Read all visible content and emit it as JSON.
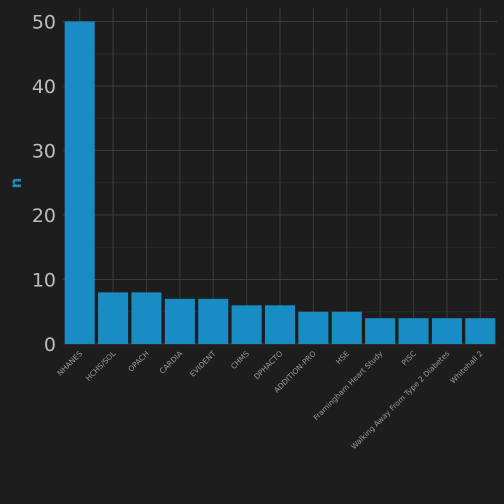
{
  "chart_data": {
    "type": "bar",
    "title": "",
    "xlabel": "",
    "ylabel": "n",
    "ylim": [
      0,
      50
    ],
    "yticks": [
      0,
      10,
      20,
      30,
      40,
      50
    ],
    "grid": true,
    "bar_color": "#1a8cc4",
    "background": "#1d1d1d",
    "grid_major_color": "#3c3c3c",
    "grid_minor_color": "#2a2a2a",
    "categories": [
      "NHANES",
      "HCHS/SOL",
      "OPACH",
      "CARDIA",
      "EVIDENT",
      "CHMS",
      "DPHACTO",
      "ADDITION-PRO",
      "HSE",
      "Framingham Heart Study",
      "PISC",
      "Walking Away From Type 2 Diabetes",
      "Whitehall 2"
    ],
    "values": [
      50,
      8,
      8,
      7,
      7,
      6,
      6,
      5,
      5,
      4,
      4,
      4,
      4
    ]
  }
}
